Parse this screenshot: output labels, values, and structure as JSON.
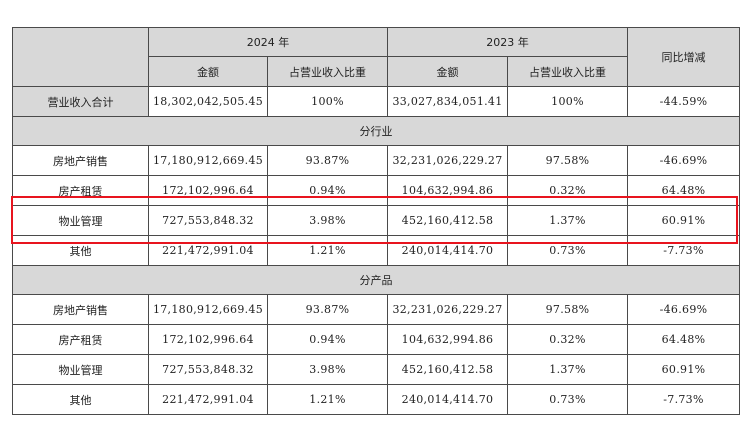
{
  "header": {
    "year_2024": "2024 年",
    "year_2023": "2023 年",
    "yoy": "同比增减",
    "amount": "金额",
    "ratio": "占营业收入比重"
  },
  "total": {
    "label": "营业收入合计",
    "amt24": "18,302,042,505.45",
    "pct24": "100%",
    "amt23": "33,027,834,051.41",
    "pct23": "100%",
    "yoy": "-44.59%"
  },
  "by_industry": {
    "title": "分行业",
    "rows": [
      {
        "label": "房地产销售",
        "amt24": "17,180,912,669.45",
        "pct24": "93.87%",
        "amt23": "32,231,026,229.27",
        "pct23": "97.58%",
        "yoy": "-46.69%"
      },
      {
        "label": "房产租赁",
        "amt24": "172,102,996.64",
        "pct24": "0.94%",
        "amt23": "104,632,994.86",
        "pct23": "0.32%",
        "yoy": "64.48%"
      },
      {
        "label": "物业管理",
        "amt24": "727,553,848.32",
        "pct24": "3.98%",
        "amt23": "452,160,412.58",
        "pct23": "1.37%",
        "yoy": "60.91%"
      },
      {
        "label": "其他",
        "amt24": "221,472,991.04",
        "pct24": "1.21%",
        "amt23": "240,014,414.70",
        "pct23": "0.73%",
        "yoy": "-7.73%"
      }
    ]
  },
  "by_product": {
    "title": "分产品",
    "rows": [
      {
        "label": "房地产销售",
        "amt24": "17,180,912,669.45",
        "pct24": "93.87%",
        "amt23": "32,231,026,229.27",
        "pct23": "97.58%",
        "yoy": "-46.69%"
      },
      {
        "label": "房产租赁",
        "amt24": "172,102,996.64",
        "pct24": "0.94%",
        "amt23": "104,632,994.86",
        "pct23": "0.32%",
        "yoy": "64.48%"
      },
      {
        "label": "物业管理",
        "amt24": "727,553,848.32",
        "pct24": "3.98%",
        "amt23": "452,160,412.58",
        "pct23": "1.37%",
        "yoy": "60.91%"
      },
      {
        "label": "其他",
        "amt24": "221,472,991.04",
        "pct24": "1.21%",
        "amt23": "240,014,414.70",
        "pct23": "0.73%",
        "yoy": "-7.73%"
      }
    ]
  },
  "colors": {
    "header_bg": "#d8d8d8",
    "highlight": "#e8141e",
    "border": "#4a4a4a"
  }
}
